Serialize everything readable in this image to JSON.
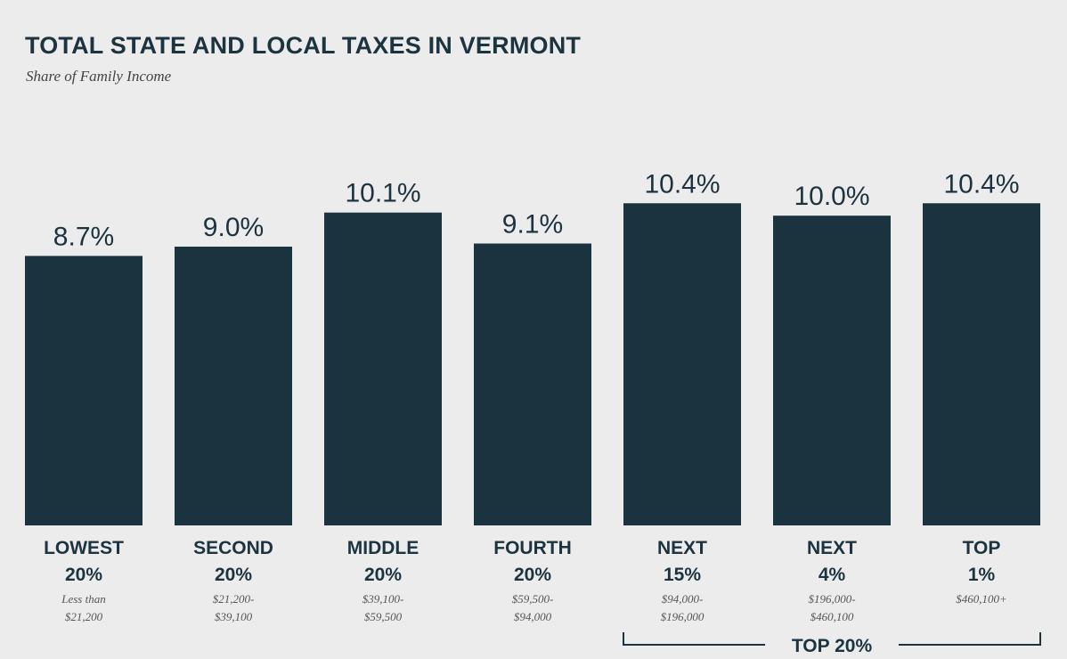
{
  "chart_data": {
    "type": "bar",
    "title": "TOTAL STATE AND LOCAL TAXES IN VERMONT",
    "subtitle": "Share of Family Income",
    "categories": [
      {
        "line1": "LOWEST",
        "line2": "20%",
        "range1": "Less than",
        "range2": "$21,200"
      },
      {
        "line1": "SECOND",
        "line2": "20%",
        "range1": "$21,200-",
        "range2": "$39,100"
      },
      {
        "line1": "MIDDLE",
        "line2": "20%",
        "range1": "$39,100-",
        "range2": "$59,500"
      },
      {
        "line1": "FOURTH",
        "line2": "20%",
        "range1": "$59,500-",
        "range2": "$94,000"
      },
      {
        "line1": "NEXT",
        "line2": "15%",
        "range1": "$94,000-",
        "range2": "$196,000"
      },
      {
        "line1": "NEXT",
        "line2": "4%",
        "range1": "$196,000-",
        "range2": "$460,100"
      },
      {
        "line1": "TOP",
        "line2": "1%",
        "range1": "$460,100+",
        "range2": ""
      }
    ],
    "values": [
      8.7,
      9.0,
      10.1,
      9.1,
      10.4,
      10.0,
      10.4
    ],
    "value_labels": [
      "8.7%",
      "9.0%",
      "10.1%",
      "9.1%",
      "10.4%",
      "10.0%",
      "10.4%"
    ],
    "ylim": [
      0,
      11.5
    ],
    "grid": false,
    "bar_color": "#1b333f",
    "bracket": {
      "label": "TOP 20%",
      "from_index": 4,
      "to_index": 6
    }
  }
}
